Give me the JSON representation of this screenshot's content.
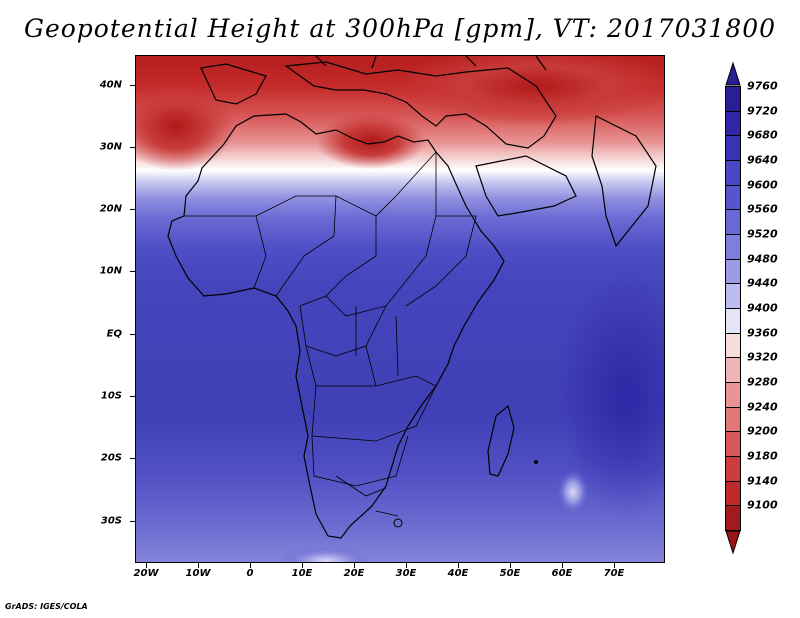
{
  "title": "Geopotential Height at 300hPa [gpm], VT: 2017031800",
  "footer": "GrADS: IGES/COLA",
  "map": {
    "lat_labels": [
      "40N",
      "30N",
      "20N",
      "10N",
      "EQ",
      "10S",
      "20S",
      "30S"
    ],
    "lon_labels": [
      "20W",
      "10W",
      "0",
      "10E",
      "20E",
      "30E",
      "40E",
      "50E",
      "60E",
      "70E"
    ],
    "lat_range": [
      -37,
      45
    ],
    "lon_range": [
      -22,
      80
    ]
  },
  "colorbar": {
    "labels": [
      "9760",
      "9720",
      "9680",
      "9640",
      "9600",
      "9560",
      "9520",
      "9480",
      "9440",
      "9400",
      "9360",
      "9320",
      "9280",
      "9240",
      "9200",
      "9180",
      "9140",
      "9100"
    ],
    "colors": [
      "#2a1e96",
      "#3226a8",
      "#3a32b4",
      "#4848c2",
      "#5656cc",
      "#6868d6",
      "#7e7ede",
      "#9c9ce6",
      "#bcbcf0",
      "#e4e4f8",
      "#f7dcdc",
      "#f0b4b4",
      "#e89494",
      "#e07878",
      "#d85858",
      "#cc3c3c",
      "#be2a2a",
      "#a01c1c"
    ],
    "arrow_top_color": "#2a1e96",
    "arrow_bottom_color": "#9a1616"
  }
}
